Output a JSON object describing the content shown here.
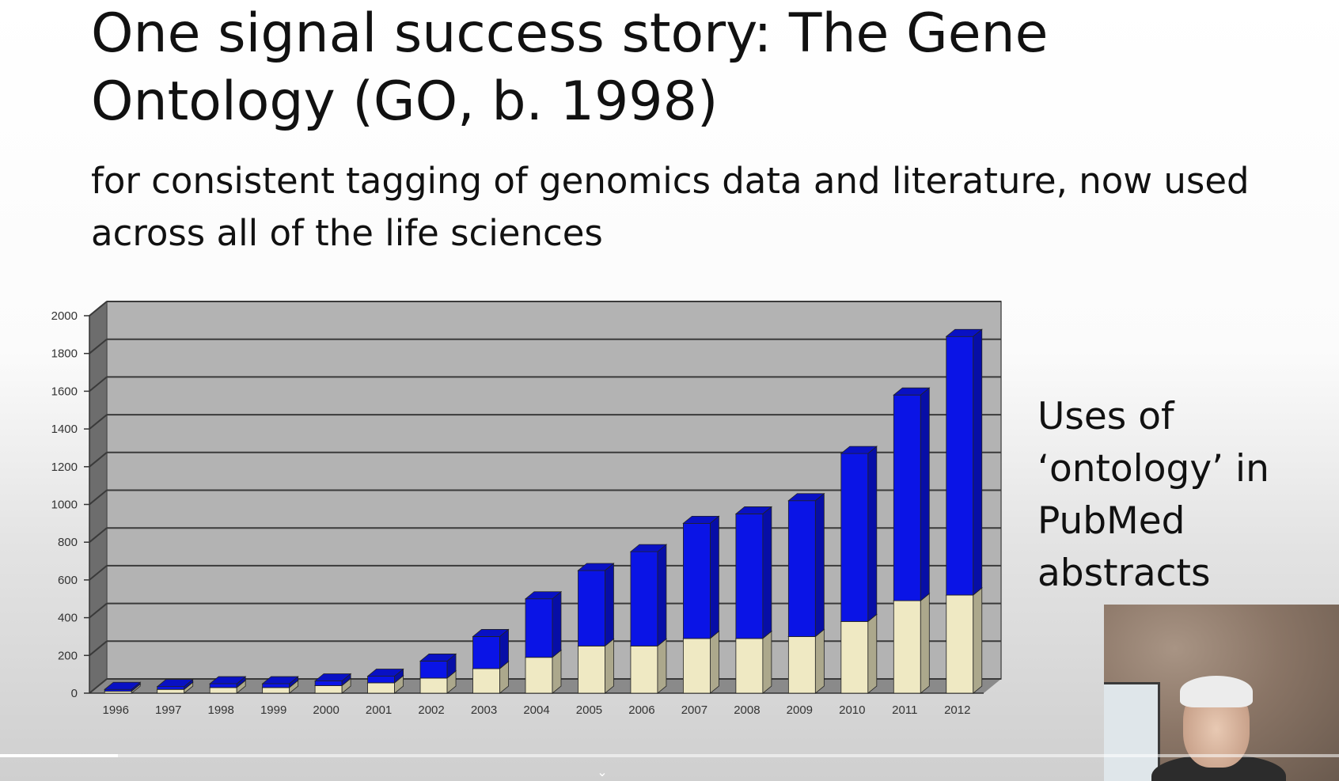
{
  "slide": {
    "title": "One signal success story: The Gene Ontology (GO, b. 1998)",
    "subtitle": "for consistent tagging of genomics data and literature, now used across all of the life sciences",
    "side_label": "Uses of ‘ontology’ in PubMed abstracts"
  },
  "chart_data": {
    "type": "bar",
    "stacked": true,
    "style": "3d",
    "categories": [
      "1996",
      "1997",
      "1998",
      "1999",
      "2000",
      "2001",
      "2002",
      "2003",
      "2004",
      "2005",
      "2006",
      "2007",
      "2008",
      "2009",
      "2010",
      "2011",
      "2012"
    ],
    "series": [
      {
        "values": [
          10,
          20,
          30,
          30,
          40,
          55,
          80,
          130,
          190,
          250,
          250,
          290,
          290,
          300,
          380,
          490,
          520
        ],
        "color": "#efe9c3"
      },
      {
        "values": [
          10,
          15,
          20,
          20,
          25,
          35,
          90,
          170,
          310,
          400,
          500,
          610,
          660,
          720,
          890,
          1090,
          1370
        ],
        "color": "#0a14e6"
      }
    ],
    "ylim": [
      0,
      2000
    ],
    "yticks": [
      0,
      200,
      400,
      600,
      800,
      1000,
      1200,
      1400,
      1600,
      1800,
      2000
    ],
    "grid": true
  },
  "video": {
    "progress_fraction": 0.088,
    "chevron_icon": "chevron-down-icon"
  }
}
